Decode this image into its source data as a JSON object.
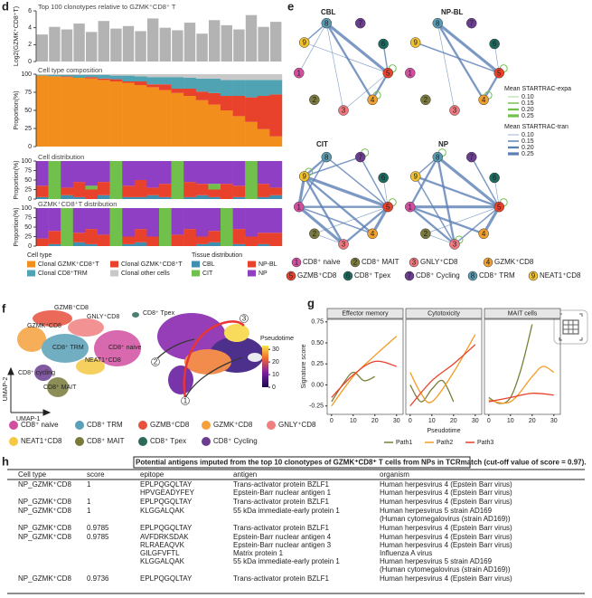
{
  "panel_labels": [
    "d",
    "e",
    "f",
    "g",
    "h"
  ],
  "chart_data": [
    {
      "type": "bar",
      "title": "Top 100 clonotypes relative to GZMK⁺CD8⁺ T",
      "ylabel": "Log2(GZMK⁺CD8⁺T)",
      "color": "#b3b3b3",
      "values": [
        3.2,
        4.1,
        3.8,
        4.5,
        3.5,
        4.8,
        3.9,
        4.2,
        3.6,
        5.1,
        4.0,
        3.7,
        4.6,
        3.3,
        4.9,
        4.3,
        3.8,
        5.5,
        4.1,
        4.7
      ],
      "ylim": [
        0,
        6
      ],
      "yticks": [
        0,
        2,
        4,
        6
      ]
    },
    {
      "type": "stacked_bar",
      "title": "Cell type composition",
      "ylabel": "Proportion(%)",
      "legend_title": "Cell type",
      "ylim": [
        0,
        100
      ],
      "yticks": [
        0,
        25,
        50,
        75,
        100
      ],
      "series": [
        {
          "name": "Clonal GZMK⁺CD8⁺T",
          "color": "#f28e1c",
          "values": [
            98,
            97,
            96,
            95,
            94,
            92,
            90,
            88,
            85,
            82,
            78,
            74,
            70,
            64,
            58,
            50,
            42,
            34,
            24,
            14
          ]
        },
        {
          "name": "Clonal GZMK⁺CD8⁺T",
          "color": "#e8412c",
          "values": [
            0,
            0,
            1,
            0,
            2,
            2,
            3,
            2,
            5,
            4,
            8,
            6,
            10,
            12,
            16,
            20,
            28,
            34,
            46,
            58
          ]
        },
        {
          "name": "Clonal CD8⁺TRM",
          "color": "#4fa3b3",
          "values": [
            1,
            2,
            2,
            4,
            3,
            5,
            5,
            8,
            7,
            10,
            10,
            16,
            15,
            18,
            20,
            22,
            22,
            24,
            22,
            20
          ]
        },
        {
          "name": "Clonal other cells",
          "color": "#c8c8c8",
          "values": [
            1,
            1,
            1,
            1,
            1,
            1,
            2,
            2,
            3,
            4,
            4,
            4,
            5,
            6,
            6,
            8,
            8,
            8,
            8,
            8
          ]
        }
      ]
    },
    {
      "type": "stacked_bar",
      "title": "Cell distribution",
      "ylabel": "Proportion(%)",
      "legend_title": "Tissue distribution",
      "ylim": [
        0,
        100
      ],
      "yticks": [
        0,
        25,
        50,
        75,
        100
      ],
      "series": [
        {
          "name": "CBL",
          "color": "#3f8fb0",
          "values": [
            5,
            0,
            10,
            5,
            0,
            10,
            0,
            5,
            5,
            10,
            5,
            0,
            5,
            10,
            5,
            0,
            5,
            0,
            5,
            10
          ]
        },
        {
          "name": "NP-BL",
          "color": "#e8412c",
          "values": [
            30,
            0,
            20,
            40,
            25,
            35,
            0,
            30,
            45,
            20,
            35,
            0,
            40,
            30,
            20,
            40,
            30,
            0,
            35,
            20
          ]
        },
        {
          "name": "CIT",
          "color": "#72c04c",
          "values": [
            0,
            100,
            0,
            0,
            10,
            0,
            100,
            0,
            0,
            0,
            0,
            100,
            0,
            0,
            15,
            0,
            0,
            100,
            0,
            0
          ]
        },
        {
          "name": "NP",
          "color": "#8e3fc4",
          "values": [
            65,
            0,
            70,
            55,
            65,
            55,
            0,
            65,
            50,
            70,
            60,
            0,
            55,
            60,
            60,
            60,
            65,
            0,
            60,
            70
          ]
        }
      ]
    },
    {
      "type": "stacked_bar",
      "title": "GZMK⁺CD8⁺T distribution",
      "ylabel": "Proportion(%)",
      "ylim": [
        0,
        100
      ],
      "yticks": [
        0,
        25,
        50,
        75,
        100
      ],
      "series": [
        {
          "color": "#3f8fb0",
          "values": [
            0,
            5,
            0,
            10,
            5,
            0,
            0,
            5,
            10,
            0,
            0,
            0,
            0,
            5,
            10,
            0,
            5,
            0,
            5,
            0
          ]
        },
        {
          "color": "#e8412c",
          "values": [
            20,
            35,
            0,
            25,
            40,
            30,
            0,
            20,
            35,
            25,
            0,
            30,
            45,
            20,
            30,
            0,
            40,
            25,
            30,
            35
          ]
        },
        {
          "color": "#72c04c",
          "values": [
            0,
            0,
            100,
            0,
            0,
            0,
            100,
            0,
            0,
            0,
            100,
            0,
            0,
            0,
            0,
            100,
            0,
            0,
            0,
            0
          ]
        },
        {
          "color": "#8e3fc4",
          "values": [
            80,
            60,
            0,
            65,
            55,
            70,
            0,
            75,
            55,
            75,
            0,
            70,
            55,
            75,
            60,
            0,
            55,
            75,
            65,
            65
          ]
        }
      ]
    },
    {
      "type": "network",
      "title": "CBL",
      "expanded": [
        5,
        4
      ],
      "edges": [
        [
          8,
          5,
          0.25
        ],
        [
          8,
          4,
          0.2
        ],
        [
          8,
          3,
          0.1
        ],
        [
          8,
          1,
          0.1
        ],
        [
          8,
          9,
          0.15
        ],
        [
          9,
          5,
          0.1
        ],
        [
          5,
          4,
          0.2
        ],
        [
          3,
          5,
          0.1
        ],
        [
          6,
          5,
          0.15
        ]
      ]
    },
    {
      "type": "network",
      "title": "NP-BL",
      "expanded": [
        5,
        4
      ],
      "edges": [
        [
          8,
          5,
          0.25
        ],
        [
          8,
          4,
          0.2
        ],
        [
          9,
          5,
          0.15
        ],
        [
          8,
          3,
          0.1
        ],
        [
          6,
          5,
          0.1
        ],
        [
          4,
          5,
          0.2
        ]
      ]
    },
    {
      "type": "network",
      "title": "CIT",
      "expanded": [
        9,
        5,
        7
      ],
      "edges": [
        [
          9,
          5,
          0.25
        ],
        [
          9,
          4,
          0.2
        ],
        [
          9,
          3,
          0.2
        ],
        [
          9,
          1,
          0.25
        ],
        [
          1,
          5,
          0.2
        ],
        [
          1,
          4,
          0.15
        ],
        [
          1,
          3,
          0.25
        ],
        [
          2,
          5,
          0.1
        ],
        [
          8,
          5,
          0.15
        ],
        [
          8,
          1,
          0.15
        ],
        [
          7,
          9,
          0.15
        ],
        [
          7,
          5,
          0.15
        ],
        [
          3,
          5,
          0.2
        ],
        [
          4,
          5,
          0.25
        ],
        [
          9,
          8,
          0.2
        ],
        [
          6,
          5,
          0.1
        ],
        [
          2,
          3,
          0.1
        ]
      ]
    },
    {
      "type": "network",
      "title": "NP",
      "expanded": [
        8,
        5,
        3
      ],
      "edges": [
        [
          8,
          5,
          0.25
        ],
        [
          8,
          3,
          0.2
        ],
        [
          8,
          1,
          0.2
        ],
        [
          8,
          9,
          0.15
        ],
        [
          9,
          5,
          0.2
        ],
        [
          1,
          5,
          0.25
        ],
        [
          1,
          4,
          0.2
        ],
        [
          1,
          3,
          0.2
        ],
        [
          3,
          5,
          0.15
        ],
        [
          4,
          5,
          0.25
        ],
        [
          7,
          5,
          0.15
        ],
        [
          9,
          3,
          0.15
        ],
        [
          2,
          5,
          0.1
        ],
        [
          6,
          5,
          0.1
        ],
        [
          2,
          3,
          0.1
        ]
      ]
    },
    {
      "type": "facet_line",
      "ylabel": "Signature score",
      "xlabel": "Pseudotime",
      "ylim": [
        -0.35,
        0.78
      ],
      "yticks": [
        {
          "value": -0.25,
          "label": "-0.25"
        },
        {
          "value": 0,
          "label": "0.00"
        },
        {
          "value": 0.25,
          "label": "0.25"
        },
        {
          "value": 0.5,
          "label": "0.50"
        },
        {
          "value": 0.75,
          "label": "0.75"
        }
      ],
      "xlim": [
        -2,
        33
      ],
      "xticks": [
        0,
        10,
        20,
        30
      ],
      "paths": [
        {
          "name": "Path1",
          "color": "#7b7d3a"
        },
        {
          "name": "Path2",
          "color": "#f39a25"
        },
        {
          "name": "Path3",
          "color": "#e8412c"
        }
      ],
      "facets": [
        {
          "title": "Effector memory",
          "series": [
            {
              "x": [
                0,
                5,
                10,
                15,
                20
              ],
              "values": [
                -0.2,
                0.0,
                0.15,
                0.05,
                0.1
              ]
            },
            {
              "x": [
                0,
                10,
                20,
                30
              ],
              "values": [
                -0.25,
                0.1,
                0.35,
                0.58
              ]
            },
            {
              "x": [
                0,
                10,
                20,
                30
              ],
              "values": [
                -0.15,
                0.12,
                0.28,
                0.22
              ]
            }
          ]
        },
        {
          "title": "Cytotoxicity",
          "series": [
            {
              "x": [
                0,
                5,
                10,
                15,
                20
              ],
              "values": [
                0.0,
                -0.2,
                -0.05,
                0.05,
                -0.2
              ]
            },
            {
              "x": [
                0,
                5,
                10,
                20,
                30
              ],
              "values": [
                0.15,
                -0.1,
                -0.2,
                0.15,
                0.6
              ]
            },
            {
              "x": [
                0,
                10,
                20,
                30
              ],
              "values": [
                -0.25,
                0.05,
                0.25,
                0.48
              ]
            }
          ]
        },
        {
          "title": "MAIT cells",
          "series": [
            {
              "x": [
                0,
                5,
                10,
                15,
                20
              ],
              "values": [
                -0.15,
                -0.22,
                -0.15,
                0.2,
                0.72
              ]
            },
            {
              "x": [
                0,
                10,
                20,
                25,
                30
              ],
              "values": [
                -0.18,
                -0.2,
                0.1,
                0.22,
                0.15
              ]
            },
            {
              "x": [
                0,
                10,
                20,
                30
              ],
              "values": [
                -0.2,
                -0.15,
                -0.1,
                -0.12
              ]
            }
          ]
        }
      ]
    }
  ],
  "network_nodes": [
    {
      "id": 1,
      "label": "CD8⁺ naive",
      "color": "#d24fa0"
    },
    {
      "id": 2,
      "label": "CD8⁺ MAIT",
      "color": "#7a7a3c"
    },
    {
      "id": 3,
      "label": "GNLY⁺CD8",
      "color": "#f0787e"
    },
    {
      "id": 4,
      "label": "GZMK⁺CD8",
      "color": "#f0a030"
    },
    {
      "id": 5,
      "label": "GZMB⁺CD8",
      "color": "#e8412c"
    },
    {
      "id": 6,
      "label": "CD8⁺ Tpex",
      "color": "#1e6a5e"
    },
    {
      "id": 7,
      "label": "CD8⁺ Cycling",
      "color": "#6a3d8f"
    },
    {
      "id": 8,
      "label": "CD8⁺ TRM",
      "color": "#5a9ab0"
    },
    {
      "id": 9,
      "label": "NEAT1⁺CD8",
      "color": "#f2c12e"
    }
  ],
  "network_legend": {
    "expansion_title": "Mean STARTRAC-expa",
    "expansion_color": "#72c04c",
    "expansion_ticks": [
      {
        "value": 0.1,
        "label": "0.10"
      },
      {
        "value": 0.15,
        "label": "0.15"
      },
      {
        "value": 0.2,
        "label": "0.20"
      },
      {
        "value": 0.25,
        "label": "0.25"
      }
    ],
    "transition_title": "Mean STARTRAC-tran",
    "transition_color": "#5b7fb5",
    "transition_ticks": [
      {
        "value": 0.1,
        "label": "0.10"
      },
      {
        "value": 0.15,
        "label": "0.15"
      },
      {
        "value": 0.2,
        "label": "0.20"
      },
      {
        "value": 0.25,
        "label": "0.25"
      }
    ]
  },
  "umap": {
    "cluster_labels": [
      "GZMB⁺CD8",
      "GNLY⁺CD8",
      "CD8⁺ Tpex",
      "GZMK⁺CD8",
      "CD8⁺ TRM",
      "CD8⁺ naive",
      "NEAT1⁺CD8",
      "CD8⁺ cycling",
      "CD8⁺ MAIT"
    ],
    "x_label": "UMAP-1",
    "y_label": "UMAP-2",
    "colorbar_title": "Pseudotime",
    "colorbar_ticks": [
      0,
      10,
      20,
      30
    ],
    "colorbar_lim": [
      0,
      33
    ],
    "path_labels": [
      1,
      2,
      3
    ],
    "legend": [
      {
        "label": "CD8⁺ naive",
        "color": "#d24fa0"
      },
      {
        "label": "CD8⁺ TRM",
        "color": "#5aa0b8"
      },
      {
        "label": "GZMB⁺CD8",
        "color": "#e8503c"
      },
      {
        "label": "GZMK⁺CD8",
        "color": "#f5a03c"
      },
      {
        "label": "GNLY⁺CD8",
        "color": "#f08080"
      },
      {
        "label": "NEAT1⁺CD8",
        "color": "#f5c842"
      },
      {
        "label": "CD8⁺ MAIT",
        "color": "#7a7a3c"
      },
      {
        "label": "CD8⁺ Tpex",
        "color": "#2a6a5a"
      },
      {
        "label": "CD8⁺ Cycling",
        "color": "#6a3d90"
      }
    ]
  },
  "table": {
    "title": "Potential antigens imputed from the top 10 clonotypes of GZMK⁺CD8⁺ T cells from NPs in TCRmatch (cut-off value of score = 0.97).",
    "columns": [
      "Cell type",
      "score",
      "epitope",
      "antigen",
      "organism"
    ],
    "rows": [
      {
        "cell_type": "NP_GZMK⁺CD8",
        "score": 1,
        "entries": [
          {
            "epitope": "EPLPQGQLTAY",
            "antigen": "Trans-activator protein BZLF1",
            "organism": [
              "Human herpesvirus 4 (Epstein Barr virus)"
            ]
          },
          {
            "epitope": "HPVGEADYFEY",
            "antigen": "Epstein-Barr nuclear antigen 1",
            "organism": [
              "Human herpesvirus 4 (Epstein Barr virus)"
            ]
          }
        ]
      },
      {
        "cell_type": "NP_GZMK⁺CD8",
        "score": 1,
        "entries": [
          {
            "epitope": "EPLPQGQLTAY",
            "antigen": "Trans-activator protein BZLF1",
            "organism": [
              "Human herpesvirus 4 (Epstein Barr virus)"
            ]
          }
        ]
      },
      {
        "cell_type": "NP_GZMK⁺CD8",
        "score": 1,
        "entries": [
          {
            "epitope": "KLGGALQAK",
            "antigen": "55 kDa immediate-early protein 1",
            "organism": [
              "Human herpesvirus 5 strain AD169",
              "(Human cytomegalovirus (strain AD169))"
            ]
          }
        ]
      },
      {
        "cell_type": "NP_GZMK⁺CD8",
        "score": 0.9785,
        "entries": [
          {
            "epitope": "EPLPQGQLTAY",
            "antigen": "Trans-activator protein BZLF1",
            "organism": [
              "Human herpesvirus 4 (Epstein Barr virus)"
            ]
          }
        ]
      },
      {
        "cell_type": "NP_GZMK⁺CD8",
        "score": 0.9785,
        "entries": [
          {
            "epitope": "AVFDRKSDAK",
            "antigen": "Epstein-Barr nuclear antigen 4",
            "organism": [
              "Human herpesvirus 4 (Epstein Barr virus)"
            ]
          },
          {
            "epitope": "RLRAEAQVK",
            "antigen": "Epstein-Barr nuclear antigen 3",
            "organism": [
              "Human herpesvirus 4 (Epstein Barr virus)"
            ]
          },
          {
            "epitope": "GILGFVFTL",
            "antigen": "Matrix protein 1",
            "organism": [
              "Influenza A virus"
            ]
          },
          {
            "epitope": "KLGGALQAK",
            "antigen": "55 kDa immediate-early protein 1",
            "organism": [
              "Human herpesvirus 5 strain AD169",
              "(Human cytomegalovirus (strain AD169))"
            ]
          }
        ]
      },
      {
        "cell_type": "NP_GZMK⁺CD8",
        "score": 0.9736,
        "entries": [
          {
            "epitope": "EPLPQGQLTAY",
            "antigen": "Trans-activator protein BZLF1",
            "organism": [
              "Human herpesvirus 4 (Epstein Barr virus)"
            ]
          }
        ]
      }
    ]
  }
}
